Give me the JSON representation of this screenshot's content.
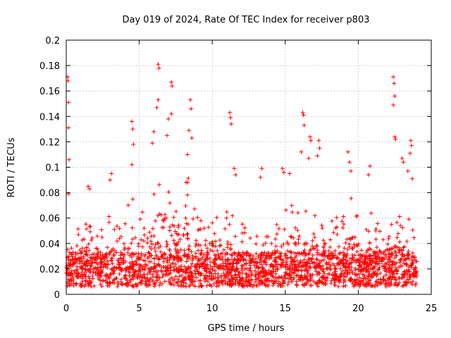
{
  "chart_data": {
    "type": "scatter",
    "title": "Day 019 of 2024, Rate Of TEC Index for receiver p803",
    "xlabel": "GPS time / hours",
    "ylabel": "ROTI / TECUs",
    "xlim": [
      0,
      25
    ],
    "ylim": [
      0,
      0.2
    ],
    "xticks": [
      0,
      5,
      10,
      15,
      20,
      25
    ],
    "xtick_labels": [
      "0",
      "5",
      "10",
      "15",
      "20",
      "25"
    ],
    "yticks": [
      0,
      0.02,
      0.04,
      0.06,
      0.08,
      0.1,
      0.12,
      0.14,
      0.16,
      0.18,
      0.2
    ],
    "ytick_labels": [
      "0",
      "0.02",
      "0.04",
      "0.06",
      "0.08",
      "0.1",
      "0.12",
      "0.14",
      "0.16",
      "0.18",
      "0.2"
    ],
    "grid": true,
    "marker": "+",
    "marker_color": "#ff0000",
    "time_range_hours": [
      0,
      24
    ],
    "envelope": {
      "hours": [
        0,
        0.5,
        1,
        1.5,
        2,
        2.5,
        3,
        3.5,
        4,
        4.5,
        5,
        5.5,
        6,
        6.5,
        7,
        7.5,
        8,
        8.5,
        9,
        9.5,
        10,
        10.5,
        11,
        11.5,
        12,
        12.5,
        13,
        13.5,
        14,
        14.5,
        15,
        15.5,
        16,
        16.5,
        17,
        17.5,
        18,
        18.5,
        19,
        19.5,
        20,
        20.5,
        21,
        21.5,
        22,
        22.5,
        23,
        23.5,
        24
      ],
      "upper_roti": [
        0.065,
        0.06,
        0.05,
        0.06,
        0.05,
        0.045,
        0.06,
        0.05,
        0.06,
        0.07,
        0.06,
        0.07,
        0.08,
        0.1,
        0.09,
        0.08,
        0.1,
        0.08,
        0.065,
        0.055,
        0.06,
        0.06,
        0.06,
        0.055,
        0.05,
        0.045,
        0.04,
        0.045,
        0.05,
        0.05,
        0.06,
        0.065,
        0.07,
        0.06,
        0.065,
        0.06,
        0.055,
        0.055,
        0.06,
        0.07,
        0.06,
        0.055,
        0.06,
        0.05,
        0.05,
        0.06,
        0.06,
        0.055,
        0.04
      ],
      "baseline_roti": 0.015
    },
    "spikes": [
      {
        "t": 0.1,
        "v": 0.171
      },
      {
        "t": 0.12,
        "v": 0.168
      },
      {
        "t": 0.15,
        "v": 0.151
      },
      {
        "t": 0.15,
        "v": 0.131
      },
      {
        "t": 0.2,
        "v": 0.106
      },
      {
        "t": 0.15,
        "v": 0.079
      },
      {
        "t": 1.5,
        "v": 0.085
      },
      {
        "t": 1.6,
        "v": 0.083
      },
      {
        "t": 3.0,
        "v": 0.09
      },
      {
        "t": 3.1,
        "v": 0.095
      },
      {
        "t": 4.5,
        "v": 0.136
      },
      {
        "t": 4.55,
        "v": 0.13
      },
      {
        "t": 4.6,
        "v": 0.118
      },
      {
        "t": 4.5,
        "v": 0.102
      },
      {
        "t": 6.3,
        "v": 0.181
      },
      {
        "t": 6.35,
        "v": 0.178
      },
      {
        "t": 6.3,
        "v": 0.153
      },
      {
        "t": 6.2,
        "v": 0.147
      },
      {
        "t": 6.0,
        "v": 0.128
      },
      {
        "t": 5.9,
        "v": 0.119
      },
      {
        "t": 7.2,
        "v": 0.167
      },
      {
        "t": 7.25,
        "v": 0.164
      },
      {
        "t": 7.2,
        "v": 0.142
      },
      {
        "t": 7.0,
        "v": 0.138
      },
      {
        "t": 6.9,
        "v": 0.125
      },
      {
        "t": 8.5,
        "v": 0.153
      },
      {
        "t": 8.55,
        "v": 0.146
      },
      {
        "t": 8.4,
        "v": 0.129
      },
      {
        "t": 8.6,
        "v": 0.123
      },
      {
        "t": 8.3,
        "v": 0.11
      },
      {
        "t": 11.2,
        "v": 0.143
      },
      {
        "t": 11.25,
        "v": 0.139
      },
      {
        "t": 11.3,
        "v": 0.134
      },
      {
        "t": 11.5,
        "v": 0.099
      },
      {
        "t": 11.6,
        "v": 0.094
      },
      {
        "t": 13.4,
        "v": 0.099
      },
      {
        "t": 13.3,
        "v": 0.092
      },
      {
        "t": 14.8,
        "v": 0.099
      },
      {
        "t": 14.9,
        "v": 0.096
      },
      {
        "t": 15.3,
        "v": 0.095
      },
      {
        "t": 16.2,
        "v": 0.143
      },
      {
        "t": 16.25,
        "v": 0.141
      },
      {
        "t": 16.3,
        "v": 0.133
      },
      {
        "t": 16.1,
        "v": 0.112
      },
      {
        "t": 16.7,
        "v": 0.124
      },
      {
        "t": 16.75,
        "v": 0.121
      },
      {
        "t": 16.6,
        "v": 0.107
      },
      {
        "t": 17.3,
        "v": 0.121
      },
      {
        "t": 17.35,
        "v": 0.115
      },
      {
        "t": 17.2,
        "v": 0.109
      },
      {
        "t": 19.3,
        "v": 0.112
      },
      {
        "t": 19.4,
        "v": 0.104
      },
      {
        "t": 19.5,
        "v": 0.097
      },
      {
        "t": 20.8,
        "v": 0.101
      },
      {
        "t": 20.7,
        "v": 0.094
      },
      {
        "t": 22.4,
        "v": 0.171
      },
      {
        "t": 22.45,
        "v": 0.166
      },
      {
        "t": 22.5,
        "v": 0.156
      },
      {
        "t": 22.4,
        "v": 0.149
      },
      {
        "t": 22.5,
        "v": 0.124
      },
      {
        "t": 22.55,
        "v": 0.122
      },
      {
        "t": 23.0,
        "v": 0.107
      },
      {
        "t": 23.1,
        "v": 0.104
      },
      {
        "t": 23.6,
        "v": 0.121
      },
      {
        "t": 23.65,
        "v": 0.117
      },
      {
        "t": 23.55,
        "v": 0.111
      },
      {
        "t": 23.4,
        "v": 0.097
      },
      {
        "t": 23.7,
        "v": 0.091
      }
    ]
  }
}
